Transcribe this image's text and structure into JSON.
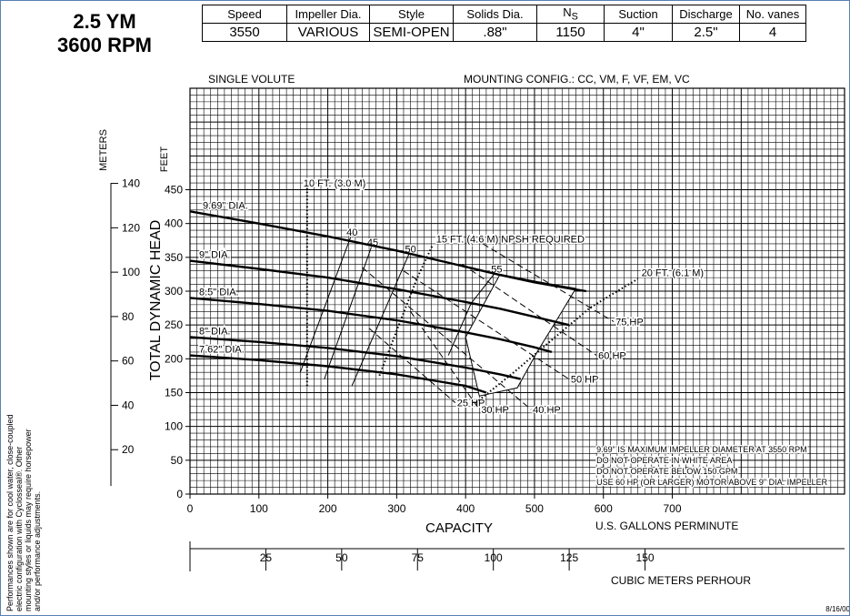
{
  "header": {
    "model": "2.5 YM",
    "rpm": "3600 RPM"
  },
  "specs": {
    "labels": [
      "Speed",
      "Impeller Dia.",
      "Style",
      "Solids Dia.",
      "N",
      "Suction",
      "Discharge",
      "No. vanes"
    ],
    "ns_subscript": "S",
    "values": [
      "3550",
      "VARIOUS",
      "SEMI-OPEN",
      ".88\"",
      "1150",
      "4\"",
      "2.5\"",
      "4"
    ]
  },
  "captions": {
    "volute": "SINGLE VOLUTE",
    "mounting": "MOUNTING CONFIG.: CC, VM, F, VF, EM, VC"
  },
  "side_note": "Performances shown are for cool water, close-coupled electric configuration with Cyclosseal®. Other mounting styles or liquids may require horsepower and/or performance adjustments.",
  "date": "8/16/00",
  "notes": [
    "9.69\" IS MAXIMUM IMPELLER DIAMETER AT 3550 RPM",
    "DO NOT OPERATE IN WHITE AREA",
    "DO NOT OPERATE BELOW 150 GPM",
    "USE 60 HP (OR LARGER) MOTOR ABOVE 9\" DIA. IMPELLER"
  ],
  "chart_data": {
    "type": "line",
    "xlabel": "CAPACITY",
    "x_units": "U.S. GALLONS PERMINUTE",
    "x_secondary_units": "CUBIC METERS PERHOUR",
    "ylabel": "TOTAL DYNAMIC HEAD",
    "y_units": "FEET",
    "y_secondary_units": "METERS",
    "xlim": [
      0,
      950
    ],
    "ylim": [
      0,
      600
    ],
    "x_ticks": [
      0,
      100,
      200,
      300,
      400,
      500,
      600,
      700
    ],
    "x_secondary_ticks": [
      25,
      50,
      75,
      100,
      125,
      150
    ],
    "y_ticks": [
      0,
      50,
      100,
      150,
      200,
      250,
      300,
      350,
      400,
      450
    ],
    "y_secondary_ticks": [
      20,
      40,
      60,
      80,
      100,
      120,
      140
    ],
    "grid": true,
    "series": [
      {
        "name": "9.69\" DIA.",
        "x": [
          0,
          100,
          200,
          300,
          400,
          450,
          500,
          550,
          575
        ],
        "y": [
          418,
          400,
          381,
          360,
          336,
          324,
          313,
          304,
          300
        ]
      },
      {
        "name": "9\" DIA.",
        "x": [
          0,
          100,
          200,
          300,
          400,
          450,
          500,
          550
        ],
        "y": [
          345,
          333,
          320,
          303,
          284,
          274,
          262,
          250
        ]
      },
      {
        "name": "8.5\" DIA.",
        "x": [
          0,
          100,
          200,
          300,
          400,
          450,
          500,
          525
        ],
        "y": [
          290,
          281,
          271,
          257,
          239,
          229,
          217,
          210
        ]
      },
      {
        "name": "8\" DIA.",
        "x": [
          0,
          100,
          200,
          300,
          400,
          450,
          480
        ],
        "y": [
          232,
          225,
          216,
          204,
          187,
          177,
          170
        ]
      },
      {
        "name": "7.62\" DIA.",
        "x": [
          0,
          100,
          200,
          300,
          400,
          430
        ],
        "y": [
          205,
          198,
          189,
          177,
          160,
          150
        ]
      }
    ],
    "efficiency": [
      {
        "label": "40",
        "x": [
          160,
          235
        ],
        "y": [
          180,
          385
        ]
      },
      {
        "label": "45",
        "x": [
          195,
          265
        ],
        "y": [
          170,
          370
        ]
      },
      {
        "label": "50",
        "x": [
          235,
          320
        ],
        "y": [
          160,
          360
        ]
      },
      {
        "label": "55",
        "x": [
          375,
          408,
          445
        ],
        "y": [
          205,
          282,
          330
        ]
      }
    ],
    "npsh": [
      {
        "label": "10 FT. (3.0 M)",
        "x": [
          170,
          170
        ],
        "y": [
          160,
          455
        ]
      },
      {
        "label": "15 FT. (4.6 M) NPSH REQUIRED",
        "x": [
          275,
          305,
          330,
          352
        ],
        "y": [
          175,
          255,
          320,
          368
        ]
      },
      {
        "label": "20 FT. (6.1 M)",
        "x": [
          415,
          470,
          530,
          580,
          620,
          650
        ],
        "y": [
          135,
          180,
          232,
          275,
          300,
          318
        ]
      }
    ],
    "horsepower": [
      {
        "label": "25 HP",
        "x": [
          260,
          385
        ],
        "y": [
          245,
          135
        ]
      },
      {
        "label": "30 HP",
        "x": [
          320,
          420
        ],
        "y": [
          270,
          125
        ]
      },
      {
        "label": "40 HP",
        "x": [
          250,
          495
        ],
        "y": [
          335,
          125
        ]
      },
      {
        "label": "50 HP",
        "x": [
          310,
          550
        ],
        "y": [
          330,
          170
        ]
      },
      {
        "label": "60 HP",
        "x": [
          395,
          590
        ],
        "y": [
          340,
          205
        ]
      },
      {
        "label": "75 HP",
        "x": [
          425,
          615
        ],
        "y": [
          370,
          255
        ]
      }
    ],
    "white_area": {
      "x": [
        400,
        450,
        505,
        560,
        535,
        505,
        475,
        420
      ],
      "y": [
        232,
        325,
        314,
        304,
        262,
        212,
        157,
        145
      ]
    }
  }
}
